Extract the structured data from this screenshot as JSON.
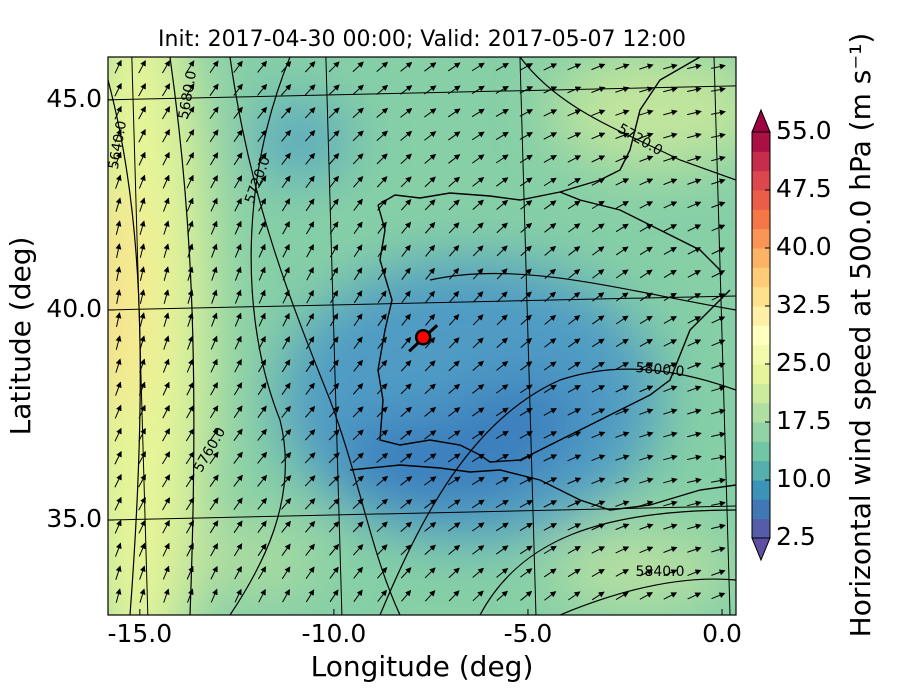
{
  "chart_data": {
    "type": "map",
    "title": "Init: 2017-04-30 00:00; Valid: 2017-05-07 12:00",
    "xlabel": "Longitude (deg)",
    "ylabel": "Latitude (deg)",
    "xlim": [
      -15.82,
      0.36
    ],
    "ylim": [
      32.74,
      46.02
    ],
    "xticks": [
      {
        "value": -15,
        "label": "-15.0"
      },
      {
        "value": -10,
        "label": "-10.0"
      },
      {
        "value": -5,
        "label": "-5.0"
      },
      {
        "value": 0,
        "label": "0.0"
      }
    ],
    "yticks": [
      {
        "value": 35,
        "label": "35.0"
      },
      {
        "value": 40,
        "label": "40.0"
      },
      {
        "value": 45,
        "label": "45.0"
      }
    ],
    "grid": true,
    "colorbar": {
      "label": "Horizontal wind speed at 500.0 hPa (m s⁻¹)",
      "lim": [
        2.5,
        55
      ],
      "ticks": [
        2.5,
        10,
        17.5,
        25,
        32.5,
        40,
        47.5,
        55
      ],
      "tick_labels": [
        "2.5",
        "10.0",
        "17.5",
        "25.0",
        "32.5",
        "40.0",
        "47.5",
        "55.0"
      ],
      "colormap": [
        "#5e4fa2",
        "#3288bd",
        "#66c2a5",
        "#abdda4",
        "#e6f598",
        "#ffffbf",
        "#fee08b",
        "#fdae61",
        "#f46d43",
        "#d53e4f",
        "#9e0142"
      ]
    },
    "contour_labels": [
      "5640.0",
      "5680.0",
      "5720.0",
      "5760.0",
      "5800.0",
      "5840.0",
      "5720.0"
    ],
    "marker": {
      "lon": -7.7,
      "lat": 39.35,
      "color": "#ff0000"
    }
  }
}
